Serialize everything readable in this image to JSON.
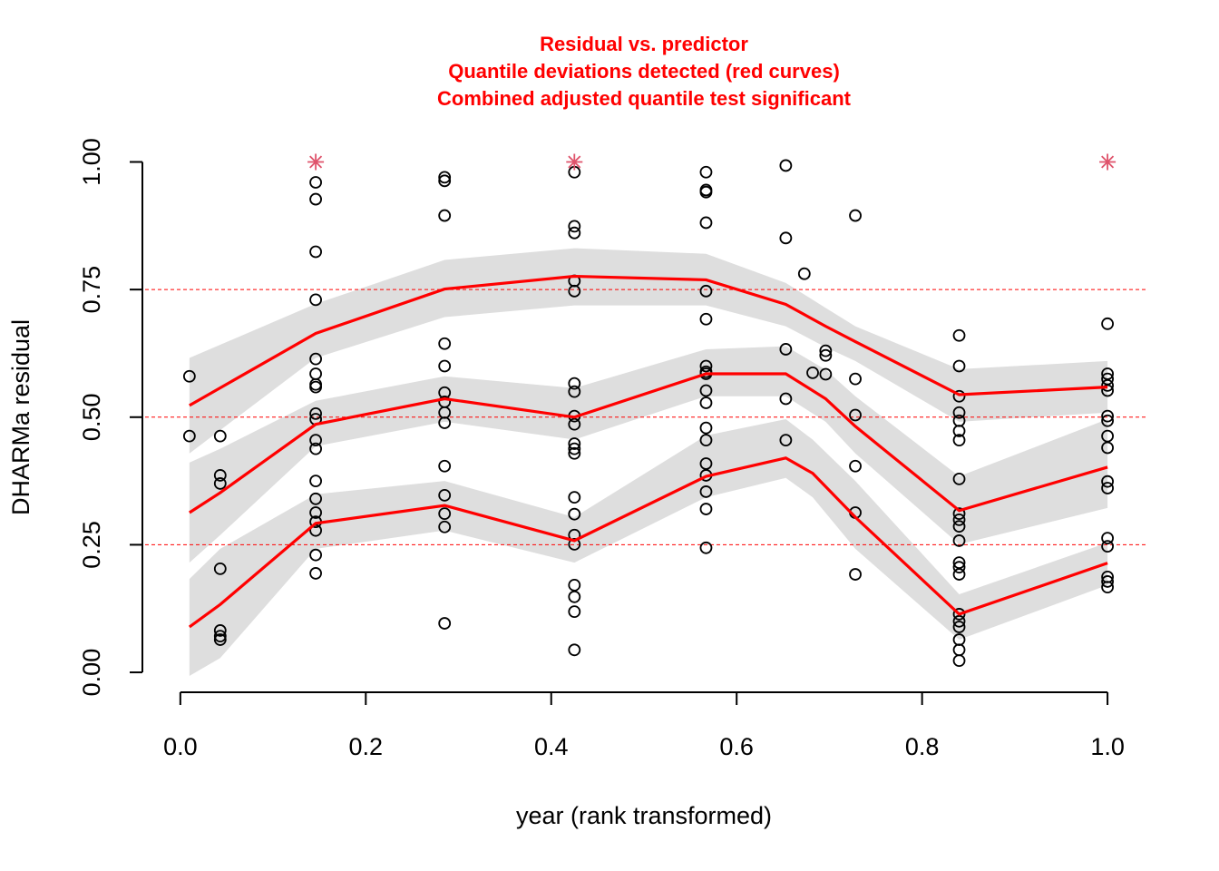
{
  "chart_data": {
    "type": "scatter",
    "title": [
      "Residual vs. predictor",
      "Quantile deviations detected (red curves)",
      "Combined adjusted quantile test significant"
    ],
    "x_label": "year (rank transformed)",
    "y_label": "DHARMa residual",
    "xlim": [
      -0.038,
      1.041
    ],
    "ylim": [
      -0.039,
      1.04
    ],
    "xticks": [
      {
        "value": 0,
        "label": "0.0"
      },
      0.2,
      0.4,
      0.6,
      0.8,
      {
        "value": 1,
        "label": "1.0"
      }
    ],
    "yticks": [
      {
        "value": 0,
        "label": "0.00"
      },
      0.25,
      {
        "value": 0.5,
        "label": "0.50"
      },
      0.75,
      {
        "value": 1,
        "label": "1.00"
      }
    ],
    "points": {
      "color": "#000000",
      "x": [
        0.0098,
        0.0098,
        0.043,
        0.043,
        0.043,
        0.043,
        0.043,
        0.043,
        0.043,
        0.146,
        0.146,
        0.146,
        0.146,
        0.146,
        0.146,
        0.146,
        0.146,
        0.146,
        0.146,
        0.146,
        0.146,
        0.146,
        0.146,
        0.146,
        0.146,
        0.146,
        0.146,
        0.146,
        0.285,
        0.285,
        0.285,
        0.285,
        0.285,
        0.285,
        0.285,
        0.285,
        0.285,
        0.285,
        0.285,
        0.285,
        0.285,
        0.285,
        0.425,
        0.425,
        0.425,
        0.425,
        0.425,
        0.425,
        0.425,
        0.425,
        0.425,
        0.425,
        0.425,
        0.425,
        0.425,
        0.425,
        0.425,
        0.425,
        0.425,
        0.425,
        0.425,
        0.425,
        0.567,
        0.567,
        0.567,
        0.567,
        0.567,
        0.567,
        0.567,
        0.567,
        0.567,
        0.567,
        0.567,
        0.567,
        0.567,
        0.567,
        0.567,
        0.567,
        0.567,
        0.567,
        0.653,
        0.653,
        0.653,
        0.653,
        0.653,
        0.673,
        0.682,
        0.696,
        0.696,
        0.696,
        0.728,
        0.728,
        0.728,
        0.728,
        0.728,
        0.728,
        0.84,
        0.84,
        0.84,
        0.84,
        0.84,
        0.84,
        0.84,
        0.84,
        0.84,
        0.84,
        0.84,
        0.84,
        0.84,
        0.84,
        0.84,
        0.84,
        0.84,
        0.84,
        0.84,
        0.84,
        0.84,
        1.0,
        1.0,
        1.0,
        1.0,
        1.0,
        1.0,
        1.0,
        1.0,
        1.0,
        1.0,
        1.0,
        1.0,
        1.0,
        1.0,
        1.0,
        1.0
      ],
      "y": [
        0.58,
        0.463,
        0.463,
        0.386,
        0.37,
        0.203,
        0.082,
        0.071,
        0.064,
        0.96,
        0.927,
        0.824,
        0.73,
        0.614,
        0.585,
        0.564,
        0.559,
        0.507,
        0.496,
        0.455,
        0.438,
        0.375,
        0.34,
        0.313,
        0.295,
        0.278,
        0.23,
        0.194,
        0.97,
        0.963,
        0.895,
        0.644,
        0.6,
        0.548,
        0.53,
        0.509,
        0.489,
        0.404,
        0.347,
        0.311,
        0.285,
        0.096,
        0.98,
        0.874,
        0.861,
        0.767,
        0.747,
        0.566,
        0.55,
        0.502,
        0.486,
        0.448,
        0.438,
        0.429,
        0.343,
        0.31,
        0.269,
        0.251,
        0.171,
        0.148,
        0.119,
        0.044,
        0.98,
        0.945,
        0.941,
        0.881,
        0.747,
        0.692,
        0.6,
        0.589,
        0.585,
        0.552,
        0.528,
        0.479,
        0.455,
        0.409,
        0.386,
        0.354,
        0.32,
        0.244,
        0.993,
        0.851,
        0.633,
        0.536,
        0.455,
        0.781,
        0.587,
        0.63,
        0.621,
        0.584,
        0.895,
        0.575,
        0.504,
        0.404,
        0.313,
        0.192,
        0.66,
        0.6,
        0.541,
        0.509,
        0.493,
        0.473,
        0.455,
        0.379,
        0.311,
        0.299,
        0.286,
        0.258,
        0.215,
        0.206,
        0.192,
        0.114,
        0.1,
        0.089,
        0.064,
        0.044,
        0.023,
        0.683,
        0.585,
        0.575,
        0.562,
        0.552,
        0.502,
        0.493,
        0.463,
        0.44,
        0.374,
        0.361,
        0.263,
        0.247,
        0.187,
        0.178,
        0.167
      ]
    },
    "outliers": {
      "color": "#df536b",
      "x": [
        0.146,
        0.425,
        1.0
      ],
      "y": [
        1,
        1,
        1
      ]
    },
    "band_color": "#dedede",
    "curve_color": "#ff0000",
    "quantile_curves": [
      {
        "quantile": 0.25,
        "x": [
          0.0098,
          0.043,
          0.146,
          0.285,
          0.425,
          0.567,
          0.653,
          0.682,
          0.728,
          0.84,
          1.0
        ],
        "values": [
          0.089,
          0.133,
          0.292,
          0.327,
          0.258,
          0.384,
          0.42,
          0.39,
          0.304,
          0.114,
          0.214
        ],
        "upper": [
          0.183,
          0.242,
          0.349,
          0.375,
          0.304,
          0.464,
          0.496,
          0.456,
          0.375,
          0.153,
          0.254
        ],
        "lower": [
          -0.007,
          0.028,
          0.242,
          0.278,
          0.215,
          0.343,
          0.381,
          0.343,
          0.242,
          0.064,
          0.171
        ]
      },
      {
        "quantile": 0.5,
        "x": [
          0.0098,
          0.043,
          0.146,
          0.285,
          0.425,
          0.567,
          0.653,
          0.696,
          0.728,
          0.84,
          1.0
        ],
        "values": [
          0.313,
          0.352,
          0.486,
          0.536,
          0.5,
          0.585,
          0.585,
          0.536,
          0.482,
          0.317,
          0.402
        ],
        "upper": [
          0.411,
          0.438,
          0.532,
          0.58,
          0.557,
          0.633,
          0.639,
          0.593,
          0.541,
          0.384,
          0.496
        ],
        "lower": [
          0.215,
          0.269,
          0.443,
          0.491,
          0.456,
          0.541,
          0.541,
          0.491,
          0.429,
          0.251,
          0.322
        ]
      },
      {
        "quantile": 0.75,
        "x": [
          0.0098,
          0.146,
          0.285,
          0.425,
          0.567,
          0.653,
          0.696,
          0.728,
          0.84,
          1.0
        ],
        "values": [
          0.523,
          0.664,
          0.751,
          0.776,
          0.769,
          0.721,
          0.678,
          0.648,
          0.544,
          0.559
        ],
        "upper": [
          0.616,
          0.722,
          0.808,
          0.831,
          0.82,
          0.763,
          0.714,
          0.678,
          0.594,
          0.61
        ],
        "lower": [
          0.429,
          0.616,
          0.696,
          0.719,
          0.719,
          0.678,
          0.637,
          0.61,
          0.491,
          0.509
        ]
      }
    ]
  }
}
